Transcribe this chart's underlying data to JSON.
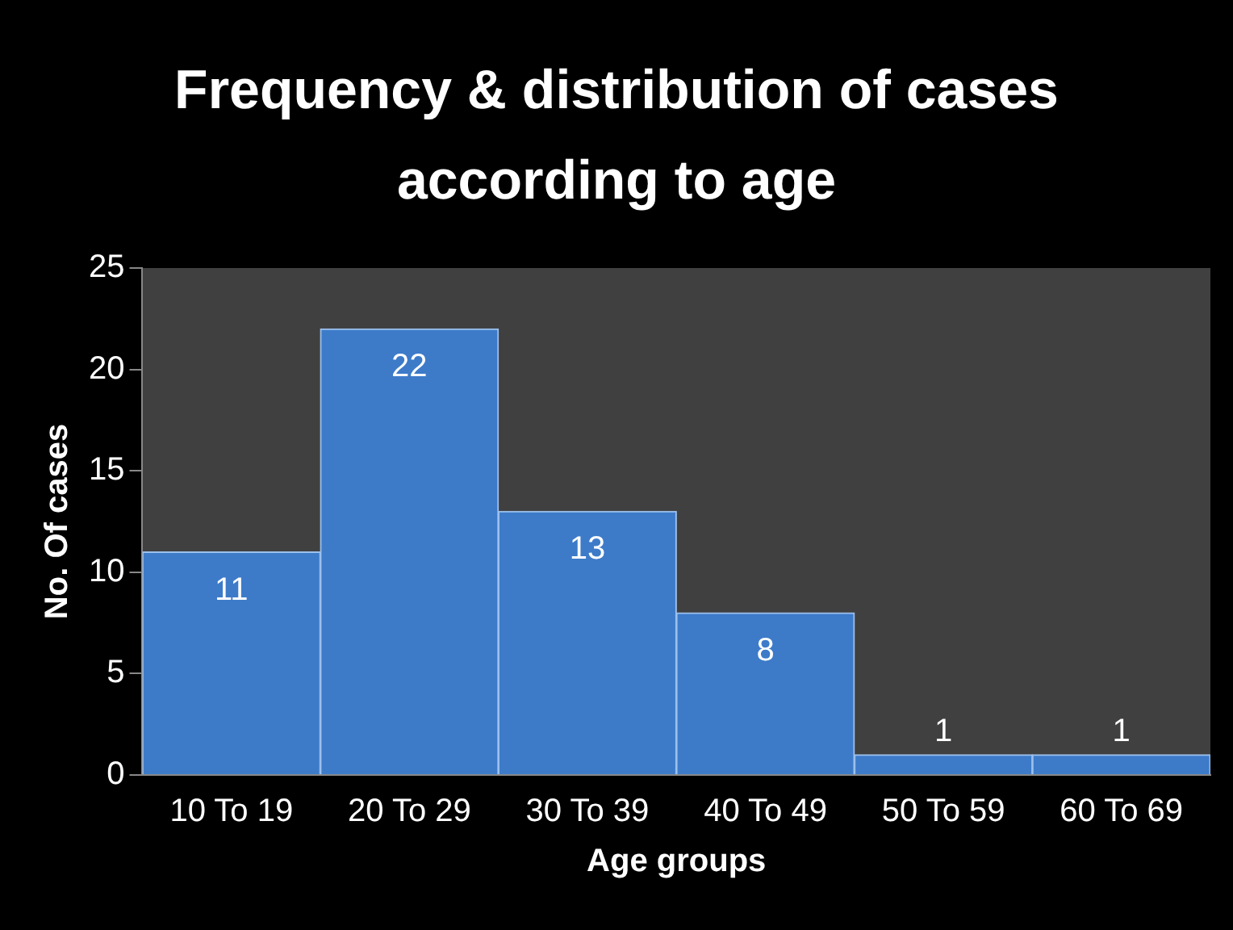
{
  "chart_data": {
    "type": "bar",
    "title": "Frequency & distribution of cases according to age",
    "xlabel": "Age groups",
    "ylabel": "No. Of cases",
    "categories": [
      "10 To 19",
      "20 To 29",
      "30 To 39",
      "40 To 49",
      "50 To 59",
      "60 To 69"
    ],
    "values": [
      11,
      22,
      13,
      8,
      1,
      1
    ],
    "color": "#3d7bc9",
    "ylim": [
      0,
      25
    ],
    "yticks": [
      0,
      5,
      10,
      15,
      20,
      25
    ],
    "grid": false,
    "legend": false,
    "data_labels": true
  }
}
